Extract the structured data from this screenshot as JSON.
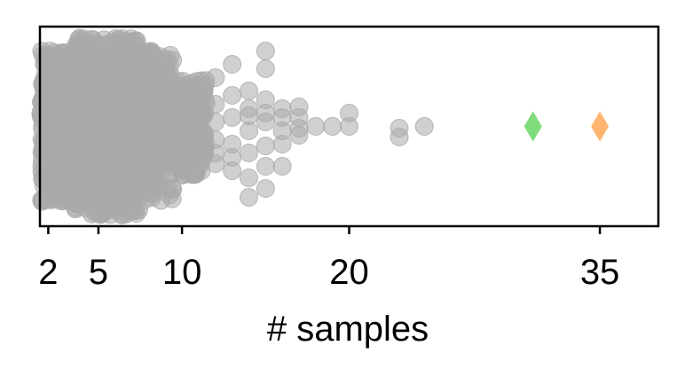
{
  "chart_data": {
    "type": "scatter",
    "title": "",
    "xlabel": "# samples",
    "ylabel": "",
    "xlim": [
      1.5,
      38.5
    ],
    "xticks": [
      2,
      5,
      10,
      20,
      35
    ],
    "xtick_labels": [
      "2",
      "5",
      "10",
      "20",
      "35"
    ],
    "grid": false,
    "legend": "none",
    "y_axis": "jitter, no ticks",
    "series": [
      {
        "role": "background distribution",
        "color": "#a9a9a9",
        "marker": "circle",
        "points": [
          {
            "x": 12,
            "y": 0.15
          },
          {
            "x": 12,
            "y": 0.42
          },
          {
            "x": 12,
            "y": -0.05
          },
          {
            "x": 12,
            "y": -0.25
          },
          {
            "x": 12,
            "y": 0.3
          },
          {
            "x": 12,
            "y": -0.55
          },
          {
            "x": 13,
            "y": 0.5
          },
          {
            "x": 13,
            "y": 0.2
          },
          {
            "x": 13,
            "y": -0.1
          },
          {
            "x": 13,
            "y": -0.35
          },
          {
            "x": 13,
            "y": -0.7
          },
          {
            "x": 13,
            "y": 0.35
          },
          {
            "x": 14,
            "y": 0.8
          },
          {
            "x": 14,
            "y": 0.58
          },
          {
            "x": 14,
            "y": 0.3
          },
          {
            "x": 14,
            "y": 0.05
          },
          {
            "x": 14,
            "y": -0.2
          },
          {
            "x": 14,
            "y": -0.4
          },
          {
            "x": 14,
            "y": -0.12
          },
          {
            "x": 15,
            "y": 0.7
          },
          {
            "x": 15,
            "y": 0.45
          },
          {
            "x": 15,
            "y": 0.22
          },
          {
            "x": 15,
            "y": -0.05
          },
          {
            "x": 15,
            "y": -0.15
          },
          {
            "x": 15,
            "y": -0.3
          },
          {
            "x": 15,
            "y": -0.65
          },
          {
            "x": 15,
            "y": -0.85
          },
          {
            "x": 16,
            "y": 0.45
          },
          {
            "x": 16,
            "y": 0.2
          },
          {
            "x": 16,
            "y": 0.05
          },
          {
            "x": 16,
            "y": -0.1
          },
          {
            "x": 16,
            "y": -0.2
          },
          {
            "x": 17,
            "y": 0.1
          },
          {
            "x": 17,
            "y": 0.02
          },
          {
            "x": 17,
            "y": -0.1
          },
          {
            "x": 17,
            "y": -0.22
          },
          {
            "x": 18,
            "y": 0.0
          },
          {
            "x": 19,
            "y": 0.0
          },
          {
            "x": 20,
            "y": 0.0
          },
          {
            "x": 20,
            "y": -0.15
          },
          {
            "x": 23,
            "y": 0.12
          },
          {
            "x": 23,
            "y": 0.02
          },
          {
            "x": 24.5,
            "y": 0.0
          }
        ]
      },
      {
        "role": "highlighted point",
        "color": "#7fdc7a",
        "marker": "diamond",
        "points": [
          {
            "x": 31,
            "y": 0.0
          }
        ]
      },
      {
        "role": "highlighted point",
        "color": "#ffb570",
        "marker": "diamond",
        "points": [
          {
            "x": 35,
            "y": 0.0
          }
        ]
      }
    ]
  }
}
